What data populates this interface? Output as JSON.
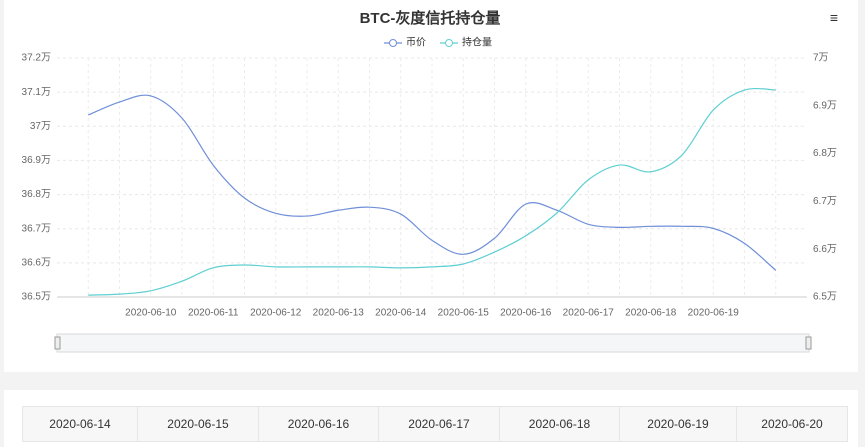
{
  "chart_data": {
    "type": "line",
    "title": "BTC-灰度信托持仓量",
    "categories": [
      null,
      null,
      "2020-06-10",
      null,
      "2020-06-11",
      null,
      "2020-06-12",
      null,
      "2020-06-13",
      null,
      "2020-06-14",
      null,
      "2020-06-15",
      null,
      "2020-06-16",
      null,
      "2020-06-17",
      null,
      "2020-06-18",
      null,
      "2020-06-19",
      null,
      null
    ],
    "series": [
      {
        "name": "币价",
        "color": "#6f8fd8",
        "axis": "y",
        "values": [
          37.033,
          37.071,
          37.089,
          37.024,
          36.886,
          36.79,
          36.745,
          36.737,
          36.754,
          36.763,
          36.743,
          36.666,
          36.625,
          36.672,
          36.772,
          36.754,
          36.713,
          36.704,
          36.707,
          36.707,
          36.701,
          36.657,
          36.578
        ]
      },
      {
        "name": "持仓量",
        "color": "#5fcfd2",
        "axis": "y2",
        "values": [
          6.504,
          6.506,
          6.513,
          6.533,
          6.561,
          6.567,
          6.563,
          6.563,
          6.563,
          6.563,
          6.561,
          6.563,
          6.569,
          6.594,
          6.628,
          6.676,
          6.745,
          6.776,
          6.762,
          6.797,
          6.891,
          6.933,
          6.933
        ]
      }
    ],
    "ylim": [
      36.5,
      37.2
    ],
    "yticks": [
      {
        "value": 36.5,
        "label": "36.5万"
      },
      {
        "value": 36.6,
        "label": "36.6万"
      },
      {
        "value": 36.7,
        "label": "36.7万"
      },
      {
        "value": 36.8,
        "label": "36.8万"
      },
      {
        "value": 36.9,
        "label": "36.9万"
      },
      {
        "value": 37,
        "label": "37万"
      },
      {
        "value": 37.1,
        "label": "37.1万"
      },
      {
        "value": 37.2,
        "label": "37.2万"
      }
    ],
    "y2lim": [
      6.5,
      7
    ],
    "y2ticks": [
      {
        "value": 6.5,
        "label": "6.5万"
      },
      {
        "value": 6.6,
        "label": "6.6万"
      },
      {
        "value": 6.7,
        "label": "6.7万"
      },
      {
        "value": 6.8,
        "label": "6.8万"
      },
      {
        "value": 6.9,
        "label": "6.9万"
      },
      {
        "value": 7,
        "label": "7万"
      }
    ],
    "grid": true,
    "legend": "top"
  },
  "table": {
    "header": [
      "2020-06-14",
      "2020-06-15",
      "2020-06-16",
      "2020-06-17",
      "2020-06-18",
      "2020-06-19",
      "2020-06-20"
    ]
  }
}
